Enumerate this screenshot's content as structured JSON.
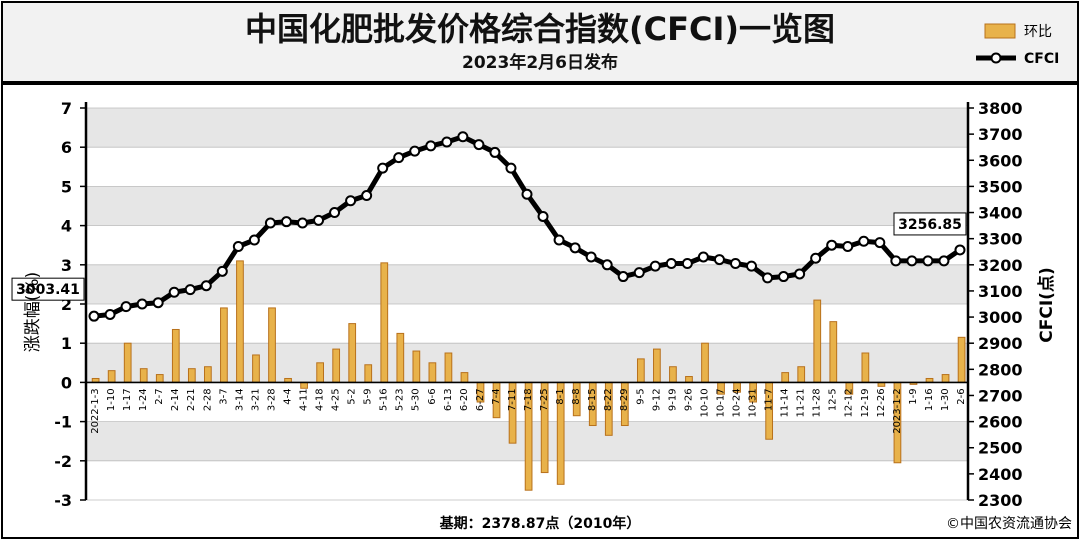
{
  "header": {
    "title": "中国化肥批发价格综合指数(CFCI)一览图",
    "subtitle": "2023年2月6日发布"
  },
  "legend": {
    "position": "top-right"
  },
  "footer": {
    "base_note": "基期：2378.87点（2010年）",
    "copyright": "©中国农资流通协会"
  },
  "colors": {
    "bar_fill": "#e8b24a",
    "bar_edge": "#b8711c",
    "line": "#000000",
    "marker_fill": "#ffffff",
    "grid_band": "#e6e6e6",
    "header_bg": "#f2f2f2"
  },
  "chart_data": {
    "type": "bar+line",
    "title": "中国化肥批发价格综合指数(CFCI)一览图",
    "subtitle": "2023年2月6日发布",
    "y_left_label": "涨跌幅(%)",
    "y_right_label": "CFCI(点)",
    "y_left_range": [
      -3,
      7
    ],
    "y_right_range": [
      2300,
      3800
    ],
    "y_left_ticks": [
      "-3",
      "-2",
      "-1",
      "0",
      "1",
      "2",
      "3",
      "4",
      "5",
      "6",
      "7"
    ],
    "y_right_ticks": [
      "2300",
      "2400",
      "2500",
      "2600",
      "2700",
      "2800",
      "2900",
      "3000",
      "3100",
      "3200",
      "3300",
      "3400",
      "3500",
      "3600",
      "3700",
      "3800"
    ],
    "categories": [
      "2022-1-3",
      "1-10",
      "1-17",
      "1-24",
      "2-7",
      "2-14",
      "2-21",
      "2-28",
      "3-7",
      "3-14",
      "3-21",
      "3-28",
      "4-4",
      "4-11",
      "4-18",
      "4-25",
      "5-2",
      "5-9",
      "5-16",
      "5-23",
      "5-30",
      "6-6",
      "6-13",
      "6-20",
      "6-27",
      "7-4",
      "7-11",
      "7-18",
      "7-25",
      "8-1",
      "8-8",
      "8-15",
      "8-22",
      "8-29",
      "9-5",
      "9-12",
      "9-19",
      "9-26",
      "10-10",
      "10-17",
      "10-24",
      "10-31",
      "11-7",
      "11-14",
      "11-21",
      "11-28",
      "12-5",
      "12-12",
      "12-19",
      "12-26",
      "2023-1-2",
      "1-9",
      "1-16",
      "1-30",
      "2-6"
    ],
    "series": [
      {
        "name": "环比",
        "type": "bar",
        "axis": "left",
        "values": [
          0.1,
          0.3,
          1.0,
          0.35,
          0.2,
          1.35,
          0.35,
          0.4,
          1.9,
          3.1,
          0.7,
          1.9,
          0.1,
          -0.15,
          0.5,
          0.85,
          1.5,
          0.45,
          3.05,
          1.25,
          0.8,
          0.5,
          0.75,
          0.25,
          -0.5,
          -0.9,
          -1.55,
          -2.75,
          -2.3,
          -2.6,
          -0.85,
          -1.1,
          -1.35,
          -1.1,
          0.6,
          0.85,
          0.4,
          0.15,
          1.0,
          -0.3,
          -0.25,
          -0.5,
          -1.45,
          0.25,
          0.4,
          2.1,
          1.55,
          -0.3,
          0.75,
          -0.1,
          -2.05,
          -0.05,
          0.1,
          0.2,
          1.15
        ]
      },
      {
        "name": "CFCI",
        "type": "line",
        "axis": "right",
        "values": [
          3003.41,
          3010,
          3040,
          3050,
          3055,
          3095,
          3105,
          3120,
          3175,
          3270,
          3295,
          3360,
          3365,
          3360,
          3370,
          3400,
          3445,
          3465,
          3570,
          3610,
          3635,
          3655,
          3670,
          3690,
          3660,
          3630,
          3570,
          3470,
          3385,
          3295,
          3265,
          3230,
          3200,
          3155,
          3170,
          3195,
          3205,
          3205,
          3230,
          3220,
          3205,
          3195,
          3150,
          3155,
          3165,
          3225,
          3275,
          3270,
          3290,
          3285,
          3215,
          3215,
          3215,
          3215,
          3256.85
        ],
        "labels": [
          {
            "index": 0,
            "text": "3003.41"
          },
          {
            "index": 54,
            "text": "3256.85"
          }
        ]
      }
    ]
  }
}
